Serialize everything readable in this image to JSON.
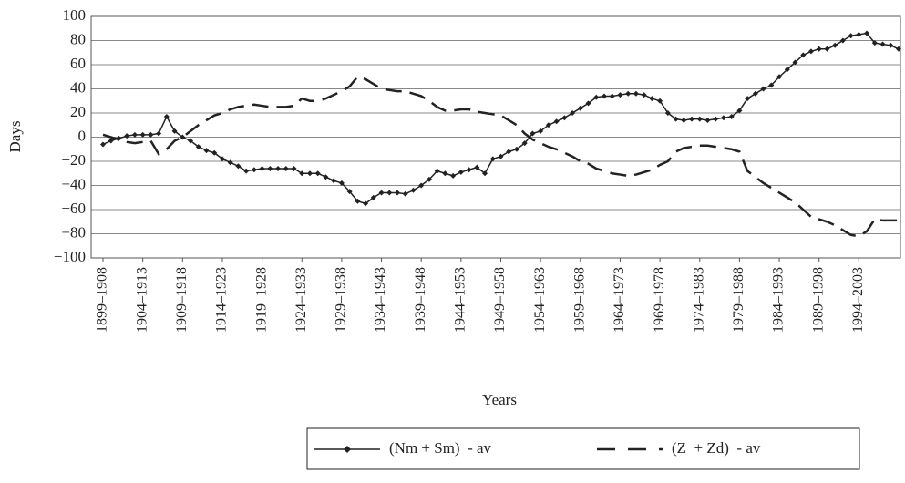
{
  "chart_data": {
    "type": "line",
    "x_label": "Years",
    "y_label": "Days",
    "categories": [
      "1899–1908",
      null,
      null,
      null,
      null,
      "1904–1913",
      null,
      null,
      null,
      null,
      "1909–1918",
      null,
      null,
      null,
      null,
      "1914–1923",
      null,
      null,
      null,
      null,
      "1919–1928",
      null,
      null,
      null,
      null,
      "1924–1933",
      null,
      null,
      null,
      null,
      "1929–1938",
      null,
      null,
      null,
      null,
      "1934–1943",
      null,
      null,
      null,
      null,
      "1939–1948",
      null,
      null,
      null,
      null,
      "1944–1953",
      null,
      null,
      null,
      null,
      "1949–1958",
      null,
      null,
      null,
      null,
      "1954–1963",
      null,
      null,
      null,
      null,
      "1959–1968",
      null,
      null,
      null,
      null,
      "1964–1973",
      null,
      null,
      null,
      null,
      "1969–1978",
      null,
      null,
      null,
      null,
      "1974–1983",
      null,
      null,
      null,
      null,
      "1979–1988",
      null,
      null,
      null,
      null,
      "1984–1993",
      null,
      null,
      null,
      null,
      "1989–1998",
      null,
      null,
      null,
      null,
      "1994–2003",
      null,
      null,
      null,
      null,
      null
    ],
    "series": [
      {
        "name": "(Nm + Sm)  - av",
        "color": "#222222",
        "line_style": "solid",
        "marker": "diamond",
        "values": [
          -6,
          -3,
          -1,
          1,
          2,
          2,
          2,
          3,
          17,
          5,
          0,
          -3,
          -8,
          -11,
          -13,
          -18,
          -21,
          -24,
          -28,
          -27,
          -26,
          -26,
          -26,
          -26,
          -26,
          -30,
          -30,
          -30,
          -33,
          -36,
          -38,
          -45,
          -53,
          -55,
          -50,
          -46,
          -46,
          -46,
          -47,
          -44,
          -40,
          -35,
          -28,
          -30,
          -32,
          -29,
          -27,
          -25,
          -30,
          -18,
          -16,
          -12,
          -10,
          -5,
          3,
          5,
          10,
          13,
          16,
          20,
          24,
          28,
          33,
          34,
          34,
          35,
          36,
          36,
          35,
          32,
          30,
          20,
          15,
          14,
          15,
          15,
          14,
          15,
          16,
          17,
          22,
          32,
          36,
          40,
          43,
          50,
          56,
          62,
          68,
          71,
          73,
          73,
          76,
          80,
          84,
          85,
          86,
          78,
          77,
          76,
          73
        ]
      },
      {
        "name": "(Z  + Zd)  - av",
        "color": "#222222",
        "line_style": "dashed",
        "marker": "none",
        "values": [
          2,
          0,
          -2,
          -4,
          -5,
          -4,
          -3,
          -14,
          -10,
          -3,
          0,
          5,
          10,
          14,
          18,
          20,
          23,
          25,
          26,
          27,
          26,
          25,
          25,
          25,
          26,
          32,
          30,
          30,
          32,
          35,
          38,
          42,
          50,
          48,
          44,
          40,
          39,
          38,
          38,
          36,
          34,
          30,
          25,
          22,
          22,
          23,
          23,
          21,
          20,
          19,
          18,
          14,
          10,
          3,
          -2,
          -5,
          -8,
          -10,
          -13,
          -16,
          -20,
          -22,
          -26,
          -28,
          -30,
          -31,
          -32,
          -31,
          -29,
          -27,
          -23,
          -20,
          -12,
          -9,
          -8,
          -7,
          -7,
          -8,
          -9,
          -10,
          -12,
          -28,
          -33,
          -38,
          -42,
          -46,
          -50,
          -54,
          -60,
          -66,
          -68,
          -70,
          -73,
          -77,
          -81,
          -82,
          -78,
          -68,
          -69,
          -69,
          -69
        ]
      }
    ],
    "ylim": [
      -100,
      100
    ],
    "yticks": [
      {
        "value": -100,
        "label": "−100"
      },
      {
        "value": -80,
        "label": "−80"
      },
      {
        "value": -60,
        "label": "−60"
      },
      {
        "value": -40,
        "label": "−40"
      },
      {
        "value": -20,
        "label": "−20"
      },
      0,
      20,
      40,
      60,
      80,
      100
    ],
    "grid": true,
    "legend": "bottom"
  }
}
